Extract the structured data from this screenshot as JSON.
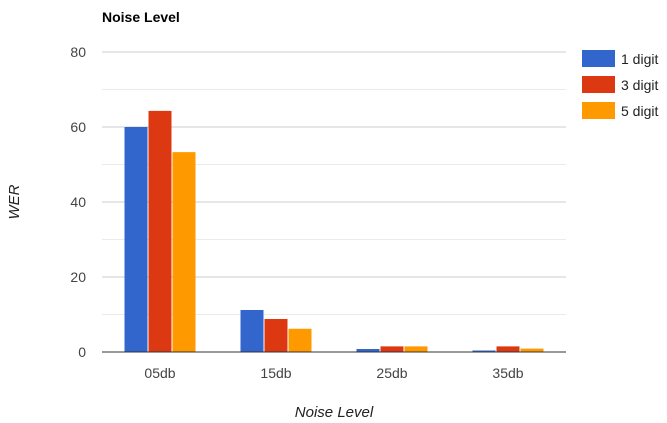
{
  "chart_data": {
    "type": "bar",
    "title": "Noise Level",
    "xlabel": "Noise Level",
    "ylabel": "WER",
    "categories": [
      "05db",
      "15db",
      "25db",
      "35db"
    ],
    "series": [
      {
        "name": "1 digit",
        "color": "#3366cc",
        "values": [
          60,
          11.2,
          0.8,
          0.4
        ]
      },
      {
        "name": "3 digit",
        "color": "#dc3912",
        "values": [
          64.3,
          8.8,
          1.5,
          1.5
        ]
      },
      {
        "name": "5 digit",
        "color": "#ff9900",
        "values": [
          53.3,
          6.2,
          1.5,
          0.9
        ]
      }
    ],
    "ylim": [
      0,
      80
    ],
    "yticks": [
      "0",
      "20",
      "40",
      "60",
      "80"
    ],
    "minor_gridlines": true,
    "legend_position": "right",
    "grid": true
  }
}
